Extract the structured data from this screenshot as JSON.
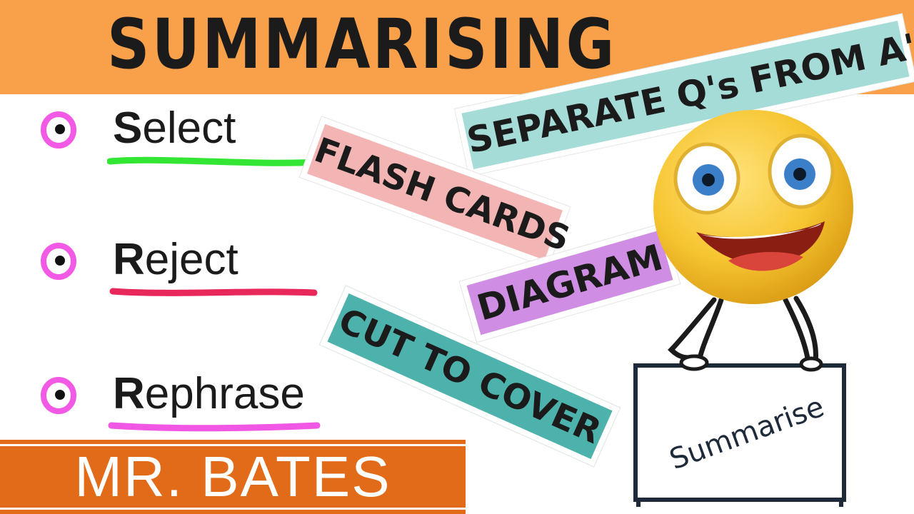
{
  "header": {
    "title": "SUMMARISING"
  },
  "bullets": [
    {
      "first_letter": "S",
      "rest": "elect",
      "underline_color": "#33e633"
    },
    {
      "first_letter": "R",
      "rest": "eject",
      "underline_color": "#e8275a"
    },
    {
      "first_letter": "R",
      "rest": "ephrase",
      "underline_color": "#f057e4"
    }
  ],
  "bullet_icon_color": "#f25ae6",
  "tags": {
    "separate": "SEPARATE Q's FROM A's",
    "flash_cards": "FLASH CARDS",
    "diagram": "DIAGRAM",
    "cut_to_cover": "CUT TO COVER"
  },
  "character": {
    "sign_text": "Summarise",
    "face_color": "#f6c531",
    "eye_color": "#3a7fc8"
  },
  "footer": {
    "name": "MR. BATES"
  },
  "colors": {
    "header_band": "#f9a04a",
    "footer_band": "#e26b19"
  }
}
